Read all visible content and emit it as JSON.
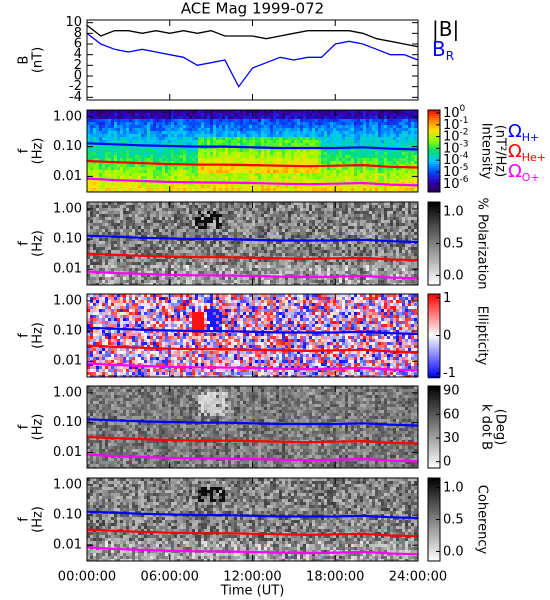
{
  "chart_data": [
    {
      "type": "line",
      "title": "ACE Mag 1999-072",
      "ylabel": [
        "B",
        "(nT)"
      ],
      "x": [
        0,
        1,
        2,
        3,
        4,
        5,
        6,
        7,
        8,
        9,
        10,
        11,
        12,
        13,
        14,
        15,
        16,
        17,
        18,
        19,
        20,
        21,
        22,
        23,
        24
      ],
      "series": [
        {
          "name": "|B|",
          "color": "#000000",
          "values": [
            9.5,
            7.5,
            8.5,
            8.5,
            8,
            8.5,
            8,
            8.5,
            8,
            8.5,
            7.5,
            7.5,
            7.5,
            7,
            7.5,
            8,
            8.5,
            8.5,
            8.5,
            8.5,
            8,
            7,
            6.5,
            6,
            5.5
          ]
        },
        {
          "name": "B",
          "subscript": "R",
          "color": "#0000ff",
          "values": [
            8,
            6,
            5,
            4.5,
            5,
            4.5,
            4,
            3.5,
            2,
            2.5,
            3,
            -2,
            1.5,
            2.5,
            3.5,
            3,
            3.5,
            3.5,
            6,
            6.5,
            6,
            5,
            4,
            4,
            3
          ]
        }
      ],
      "ylim": [
        -4.5,
        10.5
      ],
      "yticks": [
        -4,
        -2,
        0,
        2,
        4,
        6,
        8,
        10
      ]
    },
    {
      "type": "spectrogram",
      "ylabel": [
        "f",
        "(Hz)"
      ],
      "yscale": "log",
      "ylim": [
        0.003,
        1.7
      ],
      "yticks": [
        {
          "value": 1,
          "label": "1.00"
        },
        {
          "value": 0.1,
          "label": "0.10"
        },
        {
          "value": 0.01,
          "label": "0.01"
        }
      ],
      "x": [
        0,
        2,
        4,
        6,
        8,
        10,
        12,
        14,
        16,
        18,
        20,
        22,
        24
      ],
      "series": [
        {
          "name": "Ω",
          "subscript": "H+",
          "color": "#0000ff",
          "values": [
            0.13,
            0.12,
            0.11,
            0.105,
            0.1,
            0.1,
            0.095,
            0.09,
            0.09,
            0.09,
            0.095,
            0.085,
            0.08
          ]
        },
        {
          "name": "Ω",
          "subscript": "He+",
          "color": "#ff0000",
          "values": [
            0.033,
            0.03,
            0.028,
            0.026,
            0.025,
            0.025,
            0.024,
            0.023,
            0.022,
            0.023,
            0.024,
            0.021,
            0.02
          ]
        },
        {
          "name": "Ω",
          "subscript": "O+",
          "color": "#ff00ff",
          "values": [
            0.0085,
            0.0075,
            0.007,
            0.0065,
            0.0063,
            0.0062,
            0.006,
            0.0057,
            0.0055,
            0.0057,
            0.006,
            0.0053,
            0.005
          ]
        }
      ],
      "colorbar": {
        "label": [
          "Intensity",
          "(nT²/Hz)"
        ],
        "scale": "log",
        "clim": [
          2e-07,
          1.8
        ],
        "colormap": [
          "#2a0050",
          "#3000c0",
          "#0050ff",
          "#00c8ff",
          "#00e070",
          "#90ff00",
          "#ffe000",
          "#ff8000",
          "#ff0000"
        ],
        "ticks": [
          {
            "value": 1,
            "label": "10",
            "sup": "0"
          },
          {
            "value": 0.1,
            "label": "10",
            "sup": "-1"
          },
          {
            "value": 0.01,
            "label": "10",
            "sup": "-2"
          },
          {
            "value": 0.001,
            "label": "10",
            "sup": "-3"
          },
          {
            "value": 0.0001,
            "label": "10",
            "sup": "-4"
          },
          {
            "value": 1e-05,
            "label": "10",
            "sup": "-5"
          },
          {
            "value": 1e-06,
            "label": "10",
            "sup": "-6"
          }
        ]
      }
    },
    {
      "type": "spectrogram",
      "ylabel": [
        "f",
        "(Hz)"
      ],
      "yscale": "log",
      "ylim": [
        0.003,
        1.7
      ],
      "yticks": [
        {
          "value": 1,
          "label": "1.00"
        },
        {
          "value": 0.1,
          "label": "0.10"
        },
        {
          "value": 0.01,
          "label": "0.01"
        }
      ],
      "x": [
        0,
        2,
        4,
        6,
        8,
        10,
        12,
        14,
        16,
        18,
        20,
        22,
        24
      ],
      "series": [
        {
          "color": "#0000ff",
          "values": [
            0.13,
            0.12,
            0.11,
            0.105,
            0.1,
            0.1,
            0.095,
            0.09,
            0.09,
            0.09,
            0.095,
            0.085,
            0.08
          ]
        },
        {
          "color": "#ff0000",
          "values": [
            0.033,
            0.03,
            0.028,
            0.026,
            0.025,
            0.025,
            0.024,
            0.023,
            0.022,
            0.023,
            0.024,
            0.021,
            0.02
          ]
        },
        {
          "color": "#ff00ff",
          "values": [
            0.0085,
            0.0075,
            0.007,
            0.0065,
            0.0063,
            0.0062,
            0.006,
            0.0057,
            0.0055,
            0.0057,
            0.006,
            0.0053,
            0.005
          ]
        }
      ],
      "colorbar": {
        "label": [
          "% Polarization"
        ],
        "scale": "linear",
        "clim": [
          -0.15,
          1.15
        ],
        "colormap": [
          "#ffffff",
          "#000000"
        ],
        "ticks": [
          {
            "value": 0,
            "label": "0.0"
          },
          {
            "value": 0.5,
            "label": "0.5"
          },
          {
            "value": 1,
            "label": "1.0"
          }
        ]
      }
    },
    {
      "type": "spectrogram",
      "ylabel": [
        "f",
        "(Hz)"
      ],
      "yscale": "log",
      "ylim": [
        0.003,
        1.7
      ],
      "yticks": [
        {
          "value": 1,
          "label": "1.00"
        },
        {
          "value": 0.1,
          "label": "0.10"
        },
        {
          "value": 0.01,
          "label": "0.01"
        }
      ],
      "x": [
        0,
        2,
        4,
        6,
        8,
        10,
        12,
        14,
        16,
        18,
        20,
        22,
        24
      ],
      "series": [
        {
          "color": "#0000ff",
          "values": [
            0.13,
            0.12,
            0.11,
            0.105,
            0.1,
            0.1,
            0.095,
            0.09,
            0.09,
            0.09,
            0.095,
            0.085,
            0.08
          ]
        },
        {
          "color": "#ff0000",
          "values": [
            0.033,
            0.03,
            0.028,
            0.026,
            0.025,
            0.025,
            0.024,
            0.023,
            0.022,
            0.023,
            0.024,
            0.021,
            0.02
          ]
        },
        {
          "color": "#ff00ff",
          "values": [
            0.0085,
            0.0075,
            0.007,
            0.0065,
            0.0063,
            0.0062,
            0.006,
            0.0057,
            0.0055,
            0.0057,
            0.006,
            0.0053,
            0.005
          ]
        }
      ],
      "colorbar": {
        "label": [
          "Ellipticity"
        ],
        "scale": "linear",
        "clim": [
          -1.1,
          1.1
        ],
        "colormap": [
          "#0000ff",
          "#ffffff",
          "#ff0000"
        ],
        "ticks": [
          -1,
          0,
          1
        ]
      }
    },
    {
      "type": "spectrogram",
      "ylabel": [
        "f",
        "(Hz)"
      ],
      "yscale": "log",
      "ylim": [
        0.003,
        1.7
      ],
      "yticks": [
        {
          "value": 1,
          "label": "1.00"
        },
        {
          "value": 0.1,
          "label": "0.10"
        },
        {
          "value": 0.01,
          "label": "0.01"
        }
      ],
      "x": [
        0,
        2,
        4,
        6,
        8,
        10,
        12,
        14,
        16,
        18,
        20,
        22,
        24
      ],
      "series": [
        {
          "color": "#0000ff",
          "values": [
            0.13,
            0.12,
            0.11,
            0.105,
            0.1,
            0.1,
            0.095,
            0.09,
            0.09,
            0.09,
            0.095,
            0.085,
            0.08
          ]
        },
        {
          "color": "#ff0000",
          "values": [
            0.033,
            0.03,
            0.028,
            0.026,
            0.025,
            0.025,
            0.024,
            0.023,
            0.022,
            0.023,
            0.024,
            0.021,
            0.02
          ]
        },
        {
          "color": "#ff00ff",
          "values": [
            0.0085,
            0.0075,
            0.007,
            0.0065,
            0.0063,
            0.0062,
            0.006,
            0.0057,
            0.0055,
            0.0057,
            0.006,
            0.0053,
            0.005
          ]
        }
      ],
      "colorbar": {
        "label": [
          "k dot B",
          "(Deg)"
        ],
        "scale": "linear",
        "clim": [
          -8,
          96
        ],
        "colormap": [
          "#ffffff",
          "#000000"
        ],
        "ticks": [
          0,
          30,
          60,
          90
        ]
      }
    },
    {
      "type": "spectrogram",
      "ylabel": [
        "f",
        "(Hz)"
      ],
      "yscale": "log",
      "ylim": [
        0.003,
        1.7
      ],
      "yticks": [
        {
          "value": 1,
          "label": "1.00"
        },
        {
          "value": 0.1,
          "label": "0.10"
        },
        {
          "value": 0.01,
          "label": "0.01"
        }
      ],
      "x": [
        0,
        2,
        4,
        6,
        8,
        10,
        12,
        14,
        16,
        18,
        20,
        22,
        24
      ],
      "series": [
        {
          "color": "#0000ff",
          "values": [
            0.13,
            0.12,
            0.11,
            0.105,
            0.1,
            0.1,
            0.095,
            0.09,
            0.09,
            0.09,
            0.095,
            0.085,
            0.08
          ]
        },
        {
          "color": "#ff0000",
          "values": [
            0.033,
            0.03,
            0.028,
            0.026,
            0.025,
            0.025,
            0.024,
            0.023,
            0.022,
            0.023,
            0.024,
            0.021,
            0.02
          ]
        },
        {
          "color": "#ff00ff",
          "values": [
            0.0085,
            0.0075,
            0.007,
            0.0065,
            0.0063,
            0.0062,
            0.006,
            0.0057,
            0.0055,
            0.0057,
            0.006,
            0.0053,
            0.005
          ]
        }
      ],
      "colorbar": {
        "label": [
          "Coherency"
        ],
        "scale": "linear",
        "clim": [
          -0.15,
          1.15
        ],
        "colormap": [
          "#ffffff",
          "#000000"
        ],
        "ticks": [
          {
            "value": 0,
            "label": "0.0"
          },
          {
            "value": 0.5,
            "label": "0.5"
          },
          {
            "value": 1,
            "label": "1.0"
          }
        ]
      },
      "xlim": [
        0,
        24
      ],
      "xticks": [
        {
          "value": 0,
          "label": "00:00:00"
        },
        {
          "value": 6,
          "label": "06:00:00"
        },
        {
          "value": 12,
          "label": "12:00:00"
        },
        {
          "value": 18,
          "label": "18:00:00"
        },
        {
          "value": 24,
          "label": "24:00:00"
        }
      ],
      "xlabel": "Time (UT)"
    }
  ]
}
